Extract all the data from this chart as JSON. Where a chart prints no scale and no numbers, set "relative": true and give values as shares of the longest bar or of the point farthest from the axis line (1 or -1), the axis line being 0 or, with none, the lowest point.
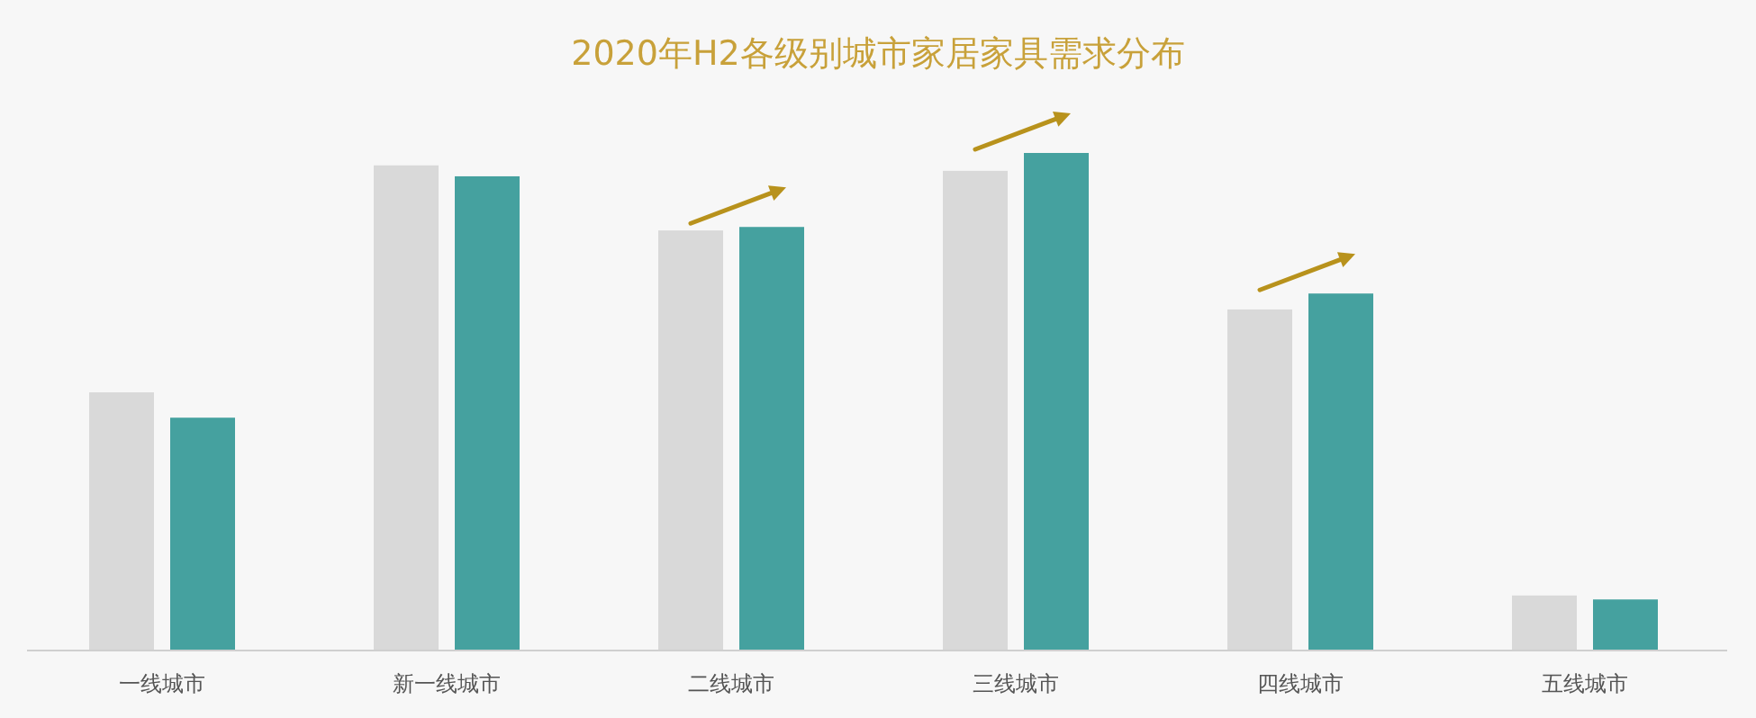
{
  "chart_data": {
    "type": "bar",
    "title": "2020年H2各级别城市家居家具需求分布",
    "relative": true,
    "categories": [
      "一线城市",
      "新一线城市",
      "二线城市",
      "三线城市",
      "四线城市",
      "五线城市"
    ],
    "series": [
      {
        "color": "#d9d9d9",
        "values": [
          0.518,
          0.975,
          0.844,
          0.964,
          0.685,
          0.109
        ]
      },
      {
        "color": "#45a19f",
        "values": [
          0.467,
          0.953,
          0.851,
          1,
          0.717,
          0.101
        ]
      }
    ],
    "grid": false
  }
}
